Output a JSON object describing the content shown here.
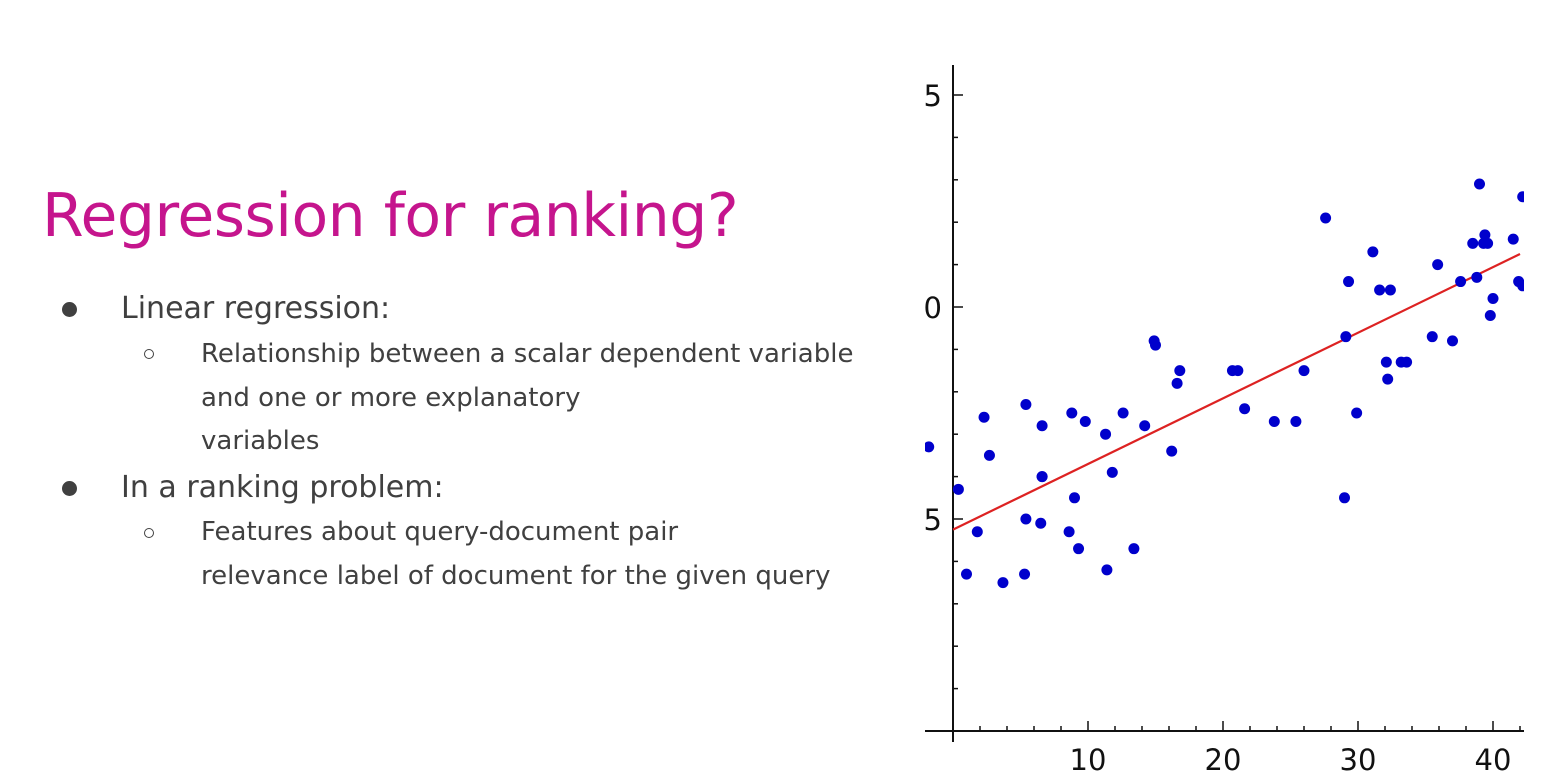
{
  "slide": {
    "title": "Regression for ranking?",
    "bullets": [
      {
        "text": "Linear regression:",
        "sub": [
          "Relationship between a scalar dependent variable  and one or more explanatory variables"
        ]
      },
      {
        "text": "In a ranking problem:",
        "sub": [
          "Features about query-document pair relevance label of document for the given query"
        ]
      }
    ]
  },
  "chart_data": {
    "type": "scatter",
    "title": "",
    "xlabel": "",
    "ylabel": "",
    "x_ticks": [
      10,
      20,
      30,
      40
    ],
    "y_ticks": [
      "5",
      "0",
      "5"
    ],
    "y_tick_note": "left part of each y tick label is cropped in the image; only the last digit is visible",
    "xlim": [
      -2,
      42
    ],
    "ylim": [
      -10,
      5
    ],
    "grid": false,
    "legend": "none",
    "colors": {
      "points": "#0000cc",
      "fit_line": "#dd2222",
      "axes": "#111111"
    },
    "fit_line": {
      "x": [
        0,
        42
      ],
      "y": [
        -5.25,
        1.25
      ]
    },
    "series": [
      {
        "x": [
          -1.8,
          0.4,
          1.0,
          1.8,
          2.3,
          2.7,
          3.7,
          5.4,
          5.3,
          5.4,
          6.5,
          6.6,
          6.6,
          6.6,
          8.6,
          8.8,
          9.0,
          9.3,
          9.8,
          11.3,
          11.4,
          11.8,
          12.6,
          13.4,
          14.2,
          14.9,
          15.0,
          16.2,
          16.6,
          16.8,
          20.7,
          21.1,
          21.6,
          23.8,
          25.4,
          26.0,
          27.6,
          29.0,
          29.1,
          29.3,
          29.9,
          31.1,
          31.6,
          32.1,
          32.2,
          32.4,
          33.2,
          33.6,
          35.5,
          35.9,
          37.0,
          37.6,
          38.5,
          38.8,
          39.0,
          39.3,
          39.4,
          39.6,
          39.8,
          40.0,
          41.5,
          41.9,
          42.2,
          42.2
        ],
        "y": [
          -3.3,
          -4.3,
          -6.3,
          -5.3,
          -2.6,
          -3.5,
          -6.5,
          -5.0,
          -6.3,
          -2.3,
          -5.1,
          -2.8,
          -4.0,
          -4.0,
          -5.3,
          -2.5,
          -4.5,
          -5.7,
          -2.7,
          -3.0,
          -6.2,
          -3.9,
          -2.5,
          -5.7,
          -2.8,
          -0.8,
          -0.9,
          -3.4,
          -1.8,
          -1.5,
          -1.5,
          -1.5,
          -2.4,
          -2.7,
          -2.7,
          -1.5,
          2.1,
          -4.5,
          -0.7,
          0.6,
          -2.5,
          1.3,
          0.4,
          -1.3,
          -1.7,
          0.4,
          -1.3,
          -1.3,
          -0.7,
          1.0,
          -0.8,
          0.6,
          1.5,
          0.7,
          2.9,
          1.5,
          1.7,
          1.5,
          -0.2,
          0.2,
          1.6,
          0.6,
          0.5,
          2.6
        ]
      }
    ]
  }
}
